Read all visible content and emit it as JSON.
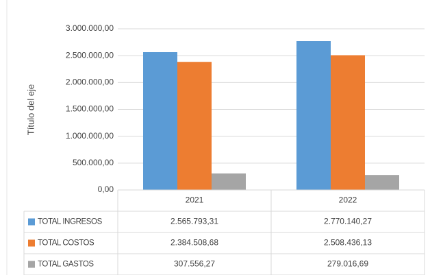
{
  "chart_data": {
    "type": "bar",
    "ylabel": "Título del eje",
    "categories": [
      "2021",
      "2022"
    ],
    "series": [
      {
        "name": "TOTAL INGRESOS",
        "color": "#5b9bd5",
        "values": [
          2565793.31,
          2770140.27
        ],
        "value_labels": [
          "2.565.793,31",
          "2.770.140,27"
        ]
      },
      {
        "name": "TOTAL COSTOS",
        "color": "#ed7d31",
        "values": [
          2384508.68,
          2508436.13
        ],
        "value_labels": [
          "2.384.508,68",
          "2.508.436,13"
        ]
      },
      {
        "name": "TOTAL GASTOS",
        "color": "#a5a5a5",
        "values": [
          307556.27,
          279016.69
        ],
        "value_labels": [
          "307.556,27",
          "279.016,69"
        ]
      }
    ],
    "ylim": [
      0,
      3000000
    ],
    "yticks": [
      {
        "value": 0,
        "label": "0,00"
      },
      {
        "value": 500000,
        "label": "500.000,00"
      },
      {
        "value": 1000000,
        "label": "1.000.000,00"
      },
      {
        "value": 1500000,
        "label": "1.500.000,00"
      },
      {
        "value": 2000000,
        "label": "2.000.000,00"
      },
      {
        "value": 2500000,
        "label": "2.500.000,00"
      },
      {
        "value": 3000000,
        "label": "3.000.000,00"
      }
    ],
    "data_table": true
  }
}
